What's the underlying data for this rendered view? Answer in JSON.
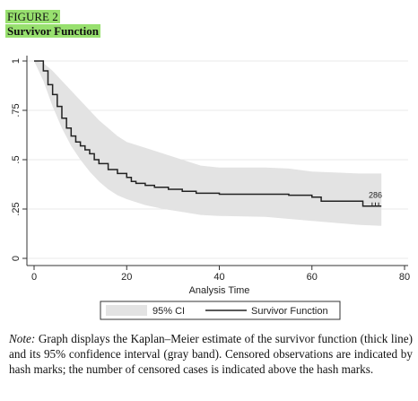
{
  "figure": {
    "label": "FIGURE 2",
    "title": "Survivor Function"
  },
  "note": {
    "lead": "Note:",
    "text": "Graph displays the Kaplan–Meier estimate of the survivor function (thick line) and its 95% confidence interval (gray band). Censored observations are indicated by hash marks; the number of censored cases is indicated above the hash marks."
  },
  "chart_data": {
    "type": "line",
    "xlabel": "Analysis Time",
    "ylabel": "",
    "xlim": [
      -1,
      80
    ],
    "ylim": [
      0,
      1
    ],
    "x_ticks": [
      0,
      20,
      40,
      60,
      80
    ],
    "x_tick_labels": [
      "0",
      "20",
      "40",
      "60",
      "80"
    ],
    "y_ticks": [
      0,
      0.25,
      0.5,
      0.75,
      1
    ],
    "y_tick_labels": [
      "0",
      ".25",
      ".5",
      ".75",
      "1"
    ],
    "grid": true,
    "legend": {
      "placement": "bottom",
      "entries": [
        "95% CI",
        "Survivor Function"
      ]
    },
    "series": [
      {
        "name": "Survivor Function",
        "style": "step",
        "color": "#222222",
        "points": [
          [
            0,
            1.0
          ],
          [
            2,
            0.95
          ],
          [
            3,
            0.88
          ],
          [
            4,
            0.83
          ],
          [
            5,
            0.77
          ],
          [
            6,
            0.71
          ],
          [
            7,
            0.66
          ],
          [
            8,
            0.62
          ],
          [
            9,
            0.59
          ],
          [
            10,
            0.57
          ],
          [
            11,
            0.55
          ],
          [
            12,
            0.53
          ],
          [
            13,
            0.5
          ],
          [
            14,
            0.48
          ],
          [
            16,
            0.45
          ],
          [
            18,
            0.43
          ],
          [
            20,
            0.41
          ],
          [
            21,
            0.39
          ],
          [
            22,
            0.38
          ],
          [
            24,
            0.37
          ],
          [
            26,
            0.36
          ],
          [
            29,
            0.35
          ],
          [
            32,
            0.34
          ],
          [
            35,
            0.33
          ],
          [
            40,
            0.325
          ],
          [
            50,
            0.325
          ],
          [
            55,
            0.32
          ],
          [
            60,
            0.31
          ],
          [
            62,
            0.29
          ],
          [
            70,
            0.29
          ],
          [
            71,
            0.265
          ],
          [
            75,
            0.265
          ]
        ]
      }
    ],
    "ci_band": {
      "name": "95% CI",
      "color": "#e3e3e3",
      "upper": [
        [
          0,
          1.0
        ],
        [
          2,
          0.99
        ],
        [
          4,
          0.95
        ],
        [
          6,
          0.9
        ],
        [
          8,
          0.85
        ],
        [
          10,
          0.8
        ],
        [
          12,
          0.75
        ],
        [
          14,
          0.7
        ],
        [
          16,
          0.66
        ],
        [
          18,
          0.62
        ],
        [
          20,
          0.59
        ],
        [
          24,
          0.56
        ],
        [
          28,
          0.53
        ],
        [
          32,
          0.5
        ],
        [
          36,
          0.47
        ],
        [
          40,
          0.46
        ],
        [
          50,
          0.46
        ],
        [
          55,
          0.455
        ],
        [
          60,
          0.44
        ],
        [
          70,
          0.43
        ],
        [
          75,
          0.43
        ]
      ],
      "lower": [
        [
          0,
          1.0
        ],
        [
          2,
          0.9
        ],
        [
          4,
          0.77
        ],
        [
          6,
          0.66
        ],
        [
          8,
          0.57
        ],
        [
          10,
          0.5
        ],
        [
          12,
          0.44
        ],
        [
          14,
          0.39
        ],
        [
          16,
          0.35
        ],
        [
          18,
          0.32
        ],
        [
          20,
          0.3
        ],
        [
          24,
          0.27
        ],
        [
          28,
          0.25
        ],
        [
          32,
          0.235
        ],
        [
          36,
          0.22
        ],
        [
          40,
          0.215
        ],
        [
          50,
          0.21
        ],
        [
          55,
          0.2
        ],
        [
          60,
          0.19
        ],
        [
          70,
          0.17
        ],
        [
          75,
          0.165
        ]
      ]
    },
    "censored": {
      "times": [
        73,
        73.7,
        74.4
      ],
      "value": 0.265,
      "count_label": "286"
    }
  }
}
